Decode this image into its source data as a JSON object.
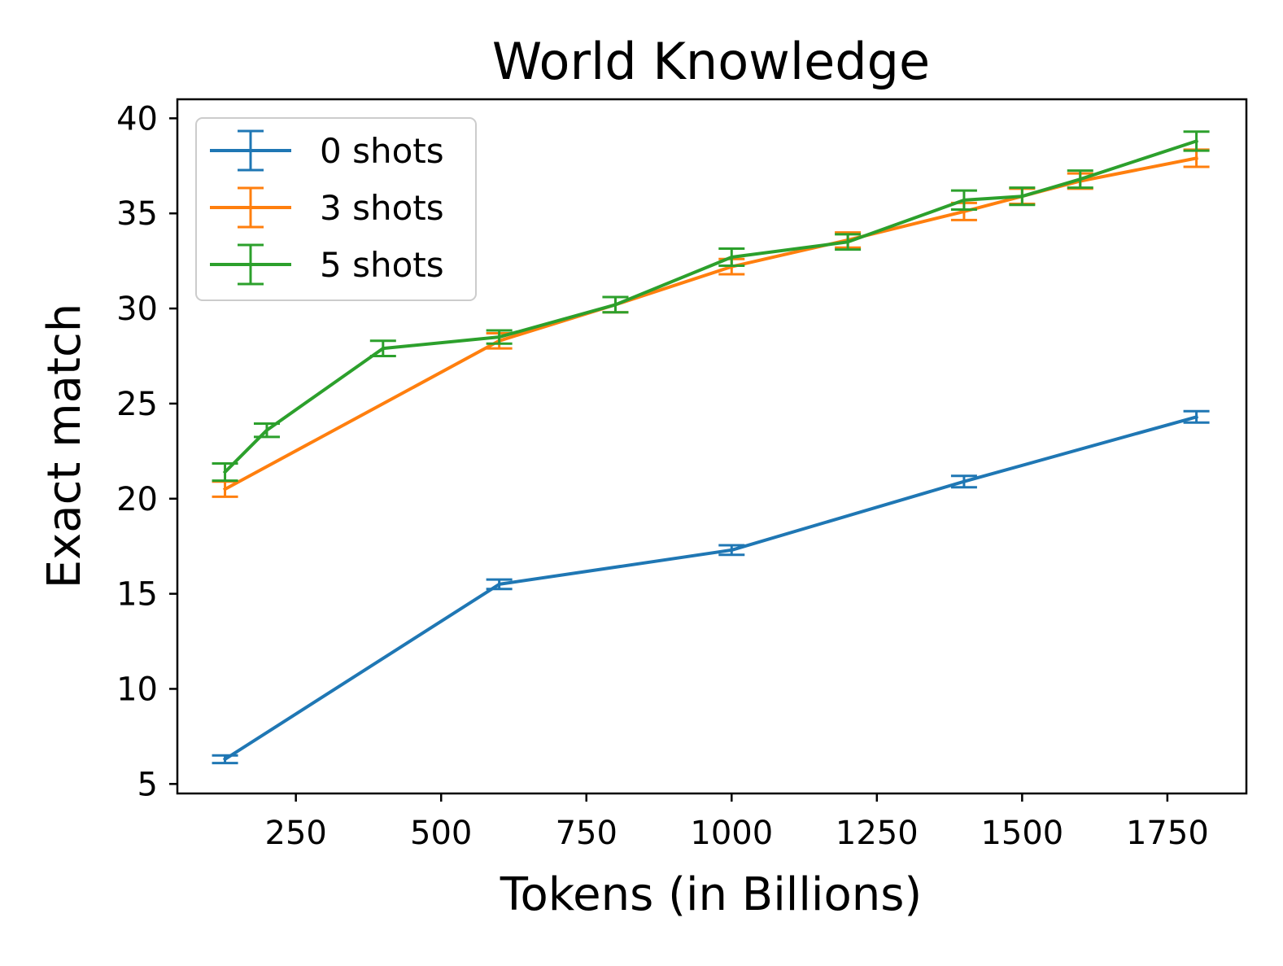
{
  "chart_data": {
    "type": "line",
    "title": "World Knowledge",
    "xlabel": "Tokens (in Billions)",
    "ylabel": "Exact match",
    "xlim": [
      46,
      1886
    ],
    "ylim": [
      4.5,
      41
    ],
    "xticks": [
      250,
      500,
      750,
      1000,
      1250,
      1500,
      1750
    ],
    "yticks": [
      5,
      10,
      15,
      20,
      25,
      30,
      35,
      40
    ],
    "grid": false,
    "legend_position": "top-left",
    "error_bars": true,
    "series": [
      {
        "name": "0 shots",
        "color": "#1f77b4",
        "x": [
          128,
          600,
          1000,
          1400,
          1800
        ],
        "y": [
          6.3,
          15.5,
          17.3,
          20.9,
          24.3
        ],
        "err": [
          0.2,
          0.25,
          0.25,
          0.3,
          0.3
        ]
      },
      {
        "name": "3 shots",
        "color": "#ff7f0e",
        "x": [
          128,
          600,
          800,
          1000,
          1200,
          1400,
          1500,
          1600,
          1800
        ],
        "y": [
          20.5,
          28.3,
          30.2,
          32.2,
          33.6,
          35.1,
          35.9,
          36.7,
          37.9
        ],
        "err": [
          0.4,
          0.4,
          0.4,
          0.4,
          0.4,
          0.45,
          0.4,
          0.4,
          0.45
        ]
      },
      {
        "name": "5 shots",
        "color": "#2ca02c",
        "x": [
          128,
          200,
          400,
          600,
          800,
          1000,
          1200,
          1400,
          1500,
          1600,
          1800
        ],
        "y": [
          21.4,
          23.6,
          27.9,
          28.5,
          30.2,
          32.7,
          33.5,
          35.7,
          35.9,
          36.8,
          38.8
        ],
        "err": [
          0.45,
          0.35,
          0.4,
          0.35,
          0.4,
          0.45,
          0.4,
          0.5,
          0.45,
          0.45,
          0.5
        ]
      }
    ]
  }
}
